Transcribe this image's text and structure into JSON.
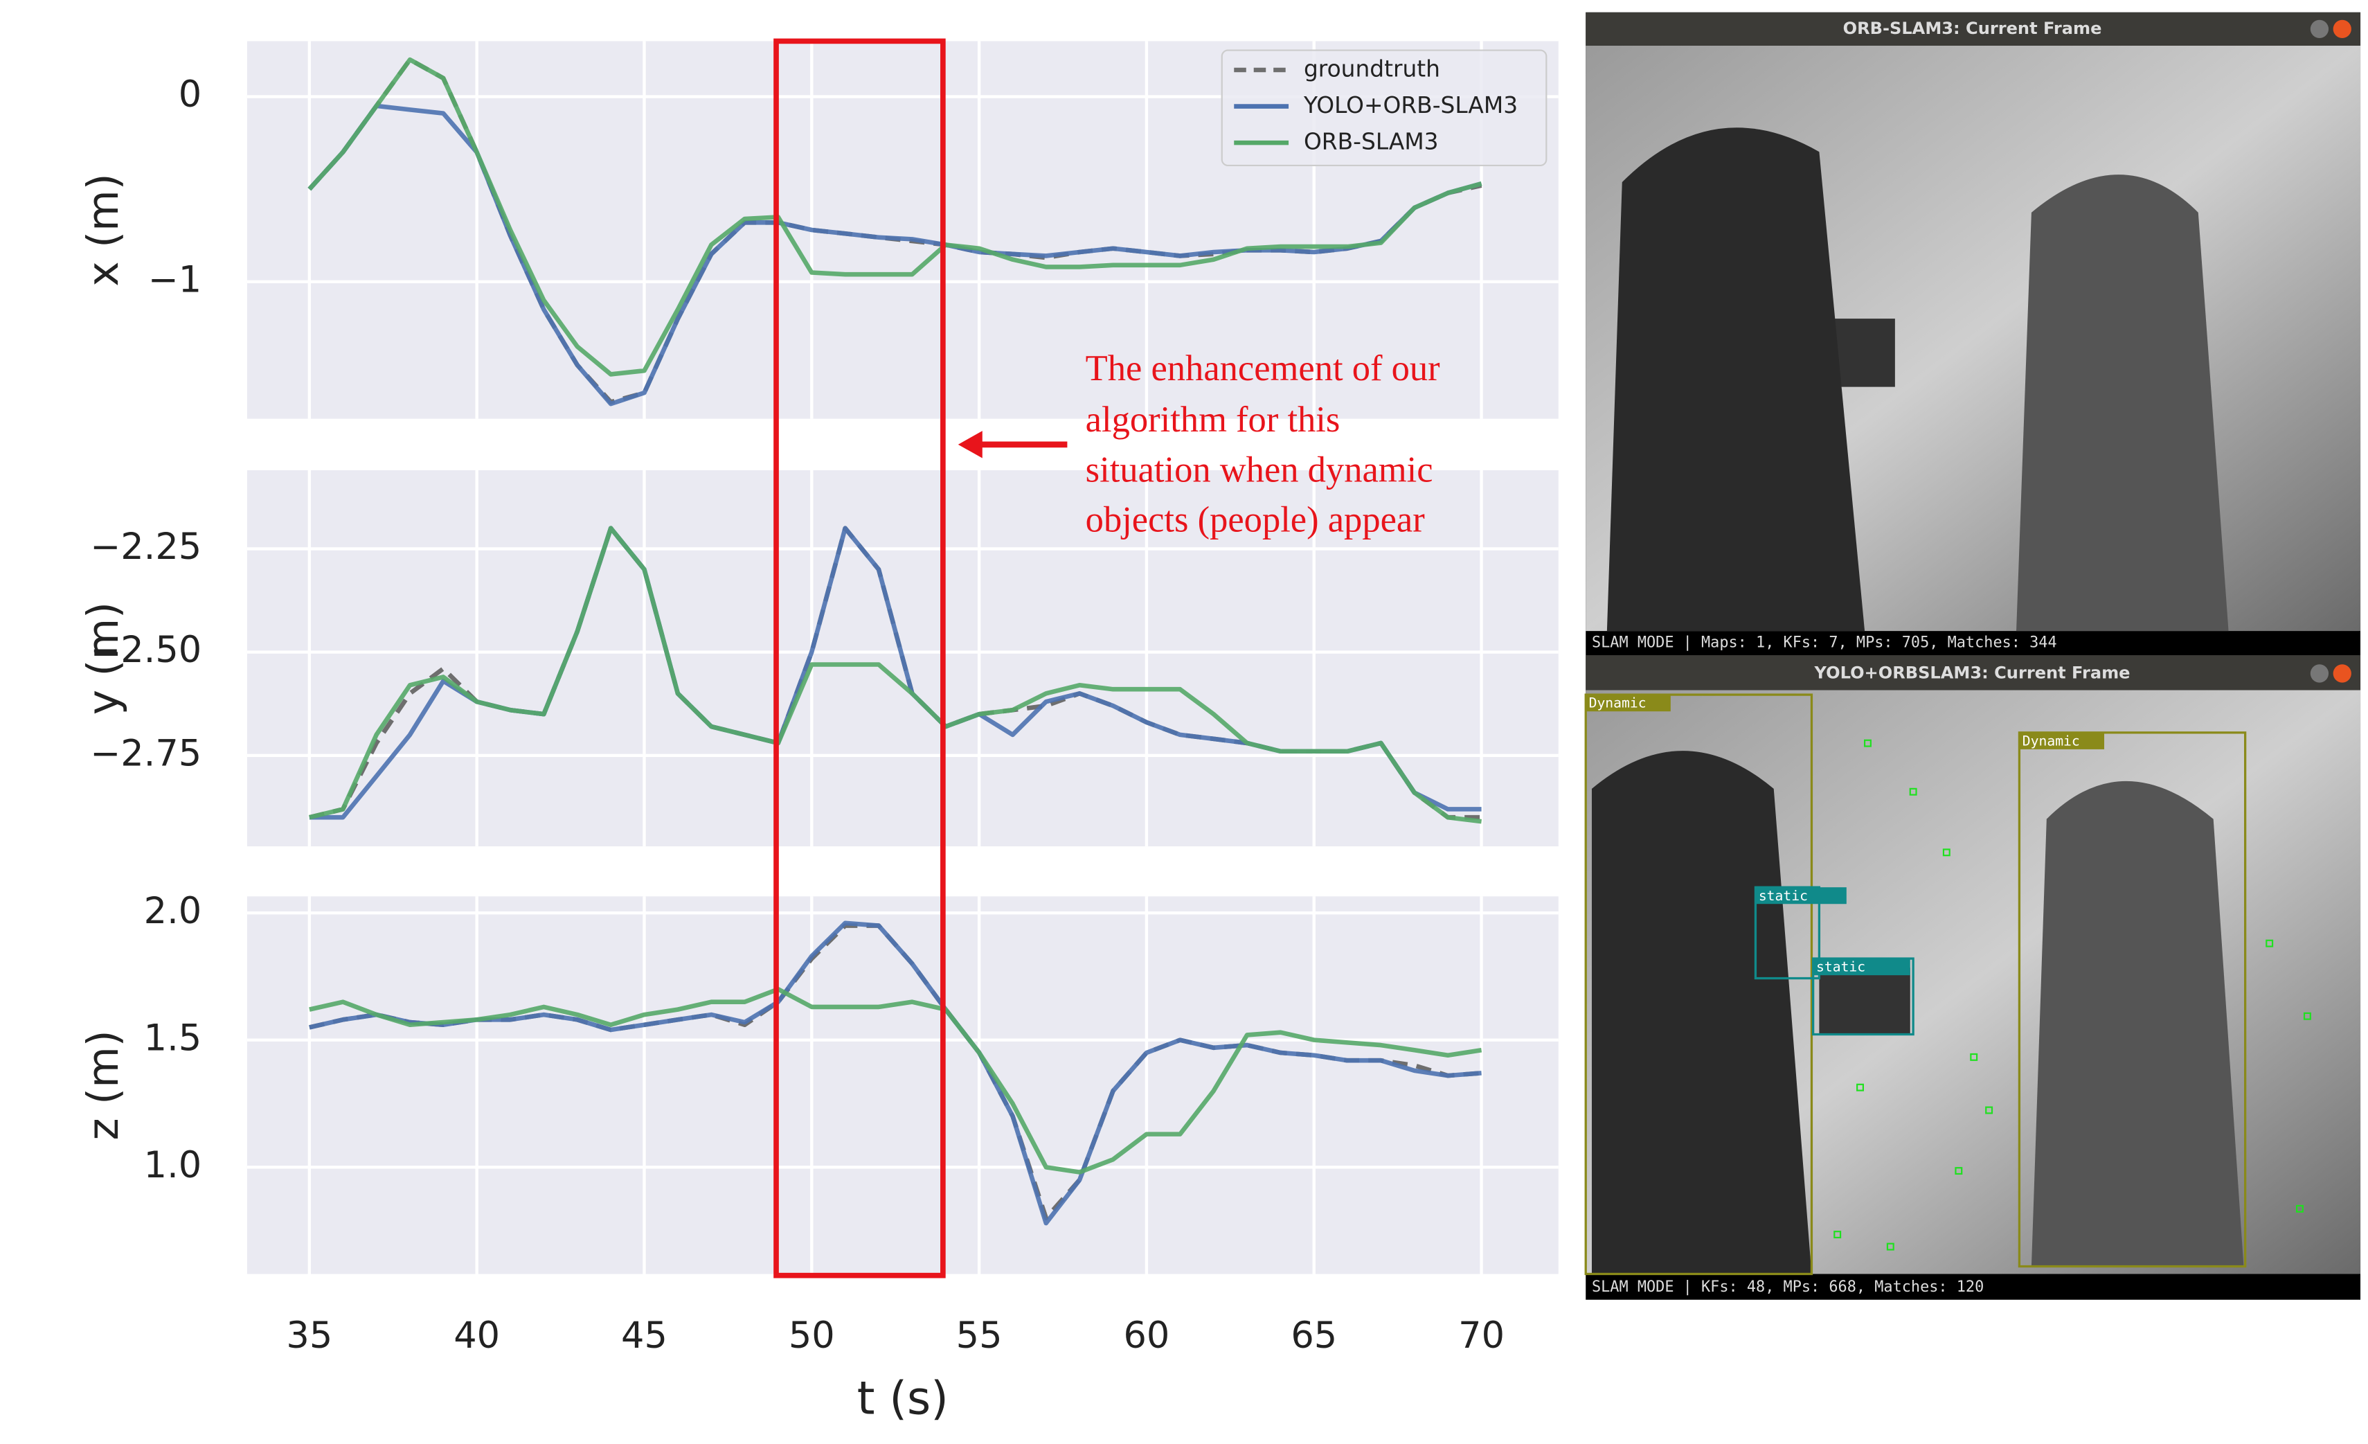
{
  "chart_data": [
    {
      "type": "line",
      "ylabel": "x (m)",
      "legend": "upper right",
      "grid": true,
      "x": [
        35,
        36,
        37,
        38,
        39,
        40,
        41,
        42,
        43,
        44,
        45,
        46,
        47,
        48,
        49,
        50,
        51,
        52,
        53,
        54,
        55,
        56,
        57,
        58,
        59,
        60,
        61,
        62,
        63,
        64,
        65,
        66,
        67,
        68,
        69,
        70
      ],
      "xlim": [
        33.14,
        72.3
      ],
      "xticks": [
        35,
        40,
        45,
        50,
        55,
        60,
        65,
        70
      ],
      "ylim": [
        -1.74,
        0.3
      ],
      "yticks": [
        {
          "value": -1,
          "label": "−1"
        },
        0
      ],
      "series": [
        {
          "name": "groundtruth",
          "color": "#6e6e6e",
          "linestyle": "dashed",
          "values": [
            -0.5,
            -0.3,
            -0.05,
            0.2,
            0.1,
            -0.3,
            -0.75,
            -1.15,
            -1.45,
            -1.65,
            -1.6,
            -1.2,
            -0.85,
            -0.68,
            -0.68,
            -0.72,
            -0.74,
            -0.76,
            -0.78,
            -0.8,
            -0.84,
            -0.85,
            -0.87,
            -0.84,
            -0.82,
            -0.84,
            -0.86,
            -0.85,
            -0.83,
            -0.83,
            -0.84,
            -0.82,
            -0.78,
            -0.6,
            -0.52,
            -0.48
          ]
        },
        {
          "name": "YOLO+ORB-SLAM3",
          "color": "#4c72b0",
          "linestyle": "solid",
          "values": [
            -0.5,
            -0.3,
            -0.05,
            -0.07,
            -0.09,
            -0.3,
            -0.75,
            -1.15,
            -1.45,
            -1.66,
            -1.6,
            -1.2,
            -0.85,
            -0.68,
            -0.68,
            -0.72,
            -0.74,
            -0.76,
            -0.77,
            -0.8,
            -0.84,
            -0.85,
            -0.86,
            -0.84,
            -0.82,
            -0.84,
            -0.86,
            -0.84,
            -0.83,
            -0.83,
            -0.84,
            -0.82,
            -0.78,
            -0.6,
            -0.52,
            -0.47
          ]
        },
        {
          "name": "ORB-SLAM3",
          "color": "#55a868",
          "linestyle": "solid",
          "values": [
            -0.5,
            -0.3,
            -0.05,
            0.2,
            0.1,
            -0.3,
            -0.72,
            -1.1,
            -1.35,
            -1.5,
            -1.48,
            -1.15,
            -0.8,
            -0.66,
            -0.65,
            -0.95,
            -0.96,
            -0.96,
            -0.96,
            -0.8,
            -0.82,
            -0.88,
            -0.92,
            -0.92,
            -0.91,
            -0.91,
            -0.91,
            -0.88,
            -0.82,
            -0.81,
            -0.81,
            -0.81,
            -0.79,
            -0.6,
            -0.52,
            -0.47
          ]
        }
      ]
    },
    {
      "type": "line",
      "ylabel": "y (m)",
      "grid": true,
      "x": [
        35,
        36,
        37,
        38,
        39,
        40,
        41,
        42,
        43,
        44,
        45,
        46,
        47,
        48,
        49,
        50,
        51,
        52,
        53,
        54,
        55,
        56,
        57,
        58,
        59,
        60,
        61,
        62,
        63,
        64,
        65,
        66,
        67,
        68,
        69,
        70
      ],
      "xlim": [
        33.14,
        72.3
      ],
      "xticks": [
        35,
        40,
        45,
        50,
        55,
        60,
        65,
        70
      ],
      "ylim": [
        -2.97,
        -2.06
      ],
      "yticks": [
        {
          "value": -2.75,
          "label": "−2.75"
        },
        {
          "value": -2.5,
          "label": "−2.50"
        },
        {
          "value": -2.25,
          "label": "−2.25"
        }
      ],
      "series": [
        {
          "name": "groundtruth",
          "color": "#6e6e6e",
          "linestyle": "dashed",
          "values": [
            -2.9,
            -2.88,
            -2.72,
            -2.6,
            -2.54,
            -2.62,
            -2.64,
            -2.65,
            -2.45,
            -2.2,
            -2.3,
            -2.6,
            -2.68,
            -2.7,
            -2.72,
            -2.5,
            -2.2,
            -2.3,
            -2.6,
            -2.68,
            -2.65,
            -2.64,
            -2.63,
            -2.6,
            -2.63,
            -2.67,
            -2.7,
            -2.71,
            -2.72,
            -2.74,
            -2.74,
            -2.74,
            -2.72,
            -2.84,
            -2.9,
            -2.9
          ]
        },
        {
          "name": "YOLO+ORB-SLAM3",
          "color": "#4c72b0",
          "linestyle": "solid",
          "values": [
            -2.9,
            -2.9,
            -2.8,
            -2.7,
            -2.57,
            -2.62,
            -2.64,
            -2.65,
            -2.45,
            -2.2,
            -2.3,
            -2.6,
            -2.68,
            -2.7,
            -2.72,
            -2.5,
            -2.2,
            -2.3,
            -2.6,
            -2.68,
            -2.65,
            -2.7,
            -2.62,
            -2.6,
            -2.63,
            -2.67,
            -2.7,
            -2.71,
            -2.72,
            -2.74,
            -2.74,
            -2.74,
            -2.72,
            -2.84,
            -2.88,
            -2.88
          ]
        },
        {
          "name": "ORB-SLAM3",
          "color": "#55a868",
          "linestyle": "solid",
          "values": [
            -2.9,
            -2.88,
            -2.7,
            -2.58,
            -2.56,
            -2.62,
            -2.64,
            -2.65,
            -2.45,
            -2.2,
            -2.3,
            -2.6,
            -2.68,
            -2.7,
            -2.72,
            -2.53,
            -2.53,
            -2.53,
            -2.6,
            -2.68,
            -2.65,
            -2.64,
            -2.6,
            -2.58,
            -2.59,
            -2.59,
            -2.59,
            -2.65,
            -2.72,
            -2.74,
            -2.74,
            -2.74,
            -2.72,
            -2.84,
            -2.9,
            -2.91
          ]
        }
      ]
    },
    {
      "type": "line",
      "ylabel": "z (m)",
      "xlabel": "t (s)",
      "grid": true,
      "x": [
        35,
        36,
        37,
        38,
        39,
        40,
        41,
        42,
        43,
        44,
        45,
        46,
        47,
        48,
        49,
        50,
        51,
        52,
        53,
        54,
        55,
        56,
        57,
        58,
        59,
        60,
        61,
        62,
        63,
        64,
        65,
        66,
        67,
        68,
        69,
        70
      ],
      "xlim": [
        33.14,
        72.3
      ],
      "xticks": [
        35,
        40,
        45,
        50,
        55,
        60,
        65,
        70
      ],
      "ylim": [
        0.58,
        2.065
      ],
      "yticks": [
        1.0,
        1.5,
        2.0
      ],
      "ytick_labels": [
        "1.0",
        "1.5",
        "2.0"
      ],
      "series": [
        {
          "name": "groundtruth",
          "color": "#6e6e6e",
          "linestyle": "dashed",
          "values": [
            1.55,
            1.58,
            1.6,
            1.57,
            1.56,
            1.58,
            1.58,
            1.6,
            1.58,
            1.54,
            1.56,
            1.58,
            1.6,
            1.56,
            1.65,
            1.82,
            1.95,
            1.95,
            1.8,
            1.62,
            1.45,
            1.2,
            0.8,
            0.95,
            1.3,
            1.45,
            1.5,
            1.47,
            1.48,
            1.45,
            1.44,
            1.42,
            1.42,
            1.4,
            1.36,
            1.37
          ]
        },
        {
          "name": "YOLO+ORB-SLAM3",
          "color": "#4c72b0",
          "linestyle": "solid",
          "values": [
            1.55,
            1.58,
            1.6,
            1.57,
            1.56,
            1.58,
            1.58,
            1.6,
            1.58,
            1.54,
            1.56,
            1.58,
            1.6,
            1.57,
            1.65,
            1.83,
            1.96,
            1.95,
            1.8,
            1.62,
            1.45,
            1.2,
            0.78,
            0.95,
            1.3,
            1.45,
            1.5,
            1.47,
            1.48,
            1.45,
            1.44,
            1.42,
            1.42,
            1.38,
            1.36,
            1.37
          ]
        },
        {
          "name": "ORB-SLAM3",
          "color": "#55a868",
          "linestyle": "solid",
          "values": [
            1.62,
            1.65,
            1.6,
            1.56,
            1.57,
            1.58,
            1.6,
            1.63,
            1.6,
            1.56,
            1.6,
            1.62,
            1.65,
            1.65,
            1.7,
            1.63,
            1.63,
            1.63,
            1.65,
            1.62,
            1.45,
            1.25,
            1.0,
            0.98,
            1.03,
            1.13,
            1.13,
            1.3,
            1.52,
            1.53,
            1.5,
            1.49,
            1.48,
            1.46,
            1.44,
            1.46
          ]
        }
      ]
    }
  ],
  "annotation": [
    "The enhancement of our",
    "algorithm for this",
    "situation when dynamic",
    "objects (people) appear"
  ],
  "screenshots": [
    {
      "title": "ORB-SLAM3: Current Frame",
      "status": "SLAM MODE |  Maps: 1, KFs: 7, MPs: 705, Matches: 344"
    },
    {
      "title": "YOLO+ORBSLAM3: Current Frame",
      "status": "SLAM MODE |  KFs: 48, MPs: 668, Matches: 120",
      "detections": [
        "Dynamic",
        "Dynamic",
        "static",
        "static"
      ]
    }
  ]
}
